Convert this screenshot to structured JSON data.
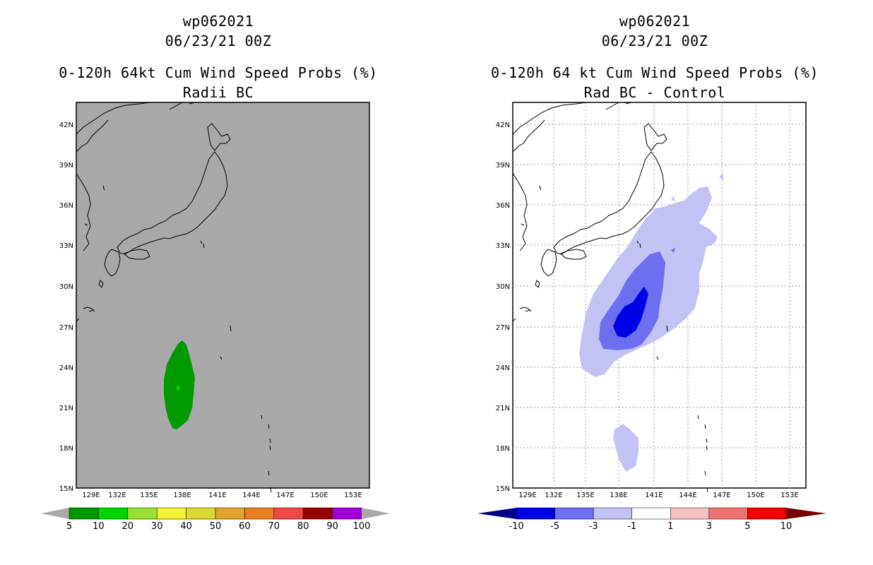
{
  "left_panel": {
    "storm_id": "wp062021",
    "datetime": "06/23/21 00Z",
    "product": "0-120h 64kt Cum Wind Speed Probs (%)",
    "subtitle": "Radii BC",
    "map_background": "#a9a9a9",
    "colorbar": {
      "colors": [
        "#009900",
        "#00d500",
        "#99e033",
        "#f2f232",
        "#d9d932",
        "#dfa32f",
        "#e77f22",
        "#f04646",
        "#960000",
        "#a000d7"
      ],
      "labels": [
        "5",
        "10",
        "20",
        "30",
        "40",
        "50",
        "60",
        "70",
        "80",
        "90",
        "100"
      ]
    }
  },
  "right_panel": {
    "storm_id": "wp062021",
    "datetime": "06/23/21 00Z",
    "product": "0-120h 64 kt Cum Wind Speed Probs (%)",
    "subtitle": "Rad BC - Control",
    "map_background": "#ffffff",
    "colorbar": {
      "colors": [
        "#0000e6",
        "#6e6ef0",
        "#c2c2f5",
        "#ffffff",
        "#f5c2c2",
        "#f07373",
        "#f00000"
      ],
      "left_tip": "#00008c",
      "right_tip": "#780000",
      "labels": [
        "-10",
        "-5",
        "-3",
        "-1",
        "1",
        "3",
        "5",
        "10"
      ]
    }
  },
  "axes": {
    "lon_ticks": [
      "129E",
      "132E",
      "135E",
      "138E",
      "141E",
      "144E",
      "147E",
      "150E",
      "153E"
    ],
    "lat_ticks": [
      "42N",
      "39N",
      "36N",
      "33N",
      "30N",
      "27N",
      "24N",
      "21N",
      "18N",
      "15N"
    ]
  },
  "map_data": {
    "projection": "lat-lon",
    "lon_range": [
      128.5,
      155.5
    ],
    "lat_range": [
      15,
      43.5
    ],
    "left_contours": [
      {
        "level": "5-10",
        "color": "#009900",
        "region": "137-139E, 19.5-26N"
      },
      {
        "level": "10-20",
        "color": "#00d500",
        "region": "near 137.5E 22.5N"
      }
    ],
    "right_contours": [
      {
        "level": "-3 to -1",
        "color": "#c2c2f5",
        "region": "135-146E, 23-36N and 136.5-138.5E 16.5-19.5N"
      },
      {
        "level": "-5 to -3",
        "color": "#6e6ef0",
        "region": "136-140.5E, 24.5-32N"
      },
      {
        "level": "-10 to -5",
        "color": "#0000e6",
        "region": "137.5-140E, 25.5-29.5N"
      }
    ]
  }
}
